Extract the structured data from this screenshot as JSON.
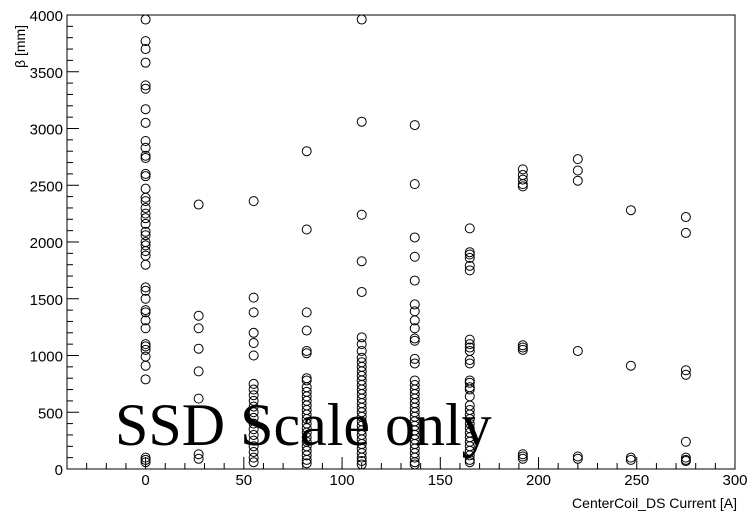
{
  "chart_data": {
    "type": "scatter",
    "title": "",
    "xlabel": "CenterCoil_DS Current [A]",
    "ylabel": "β [mm]",
    "xlim": [
      -40,
      300
    ],
    "ylim": [
      0,
      4000
    ],
    "x_ticks": [
      0,
      50,
      100,
      150,
      200,
      250,
      300
    ],
    "y_ticks": [
      0,
      500,
      1000,
      1500,
      2000,
      2500,
      3000,
      3500,
      4000
    ],
    "marker": "open-circle",
    "grid": false,
    "annotation": "SSD Scale only",
    "points": [
      [
        0,
        3960
      ],
      [
        0,
        3770
      ],
      [
        0,
        3700
      ],
      [
        0,
        3580
      ],
      [
        0,
        3380
      ],
      [
        0,
        3350
      ],
      [
        0,
        3170
      ],
      [
        0,
        3050
      ],
      [
        0,
        2890
      ],
      [
        0,
        2830
      ],
      [
        0,
        2760
      ],
      [
        0,
        2740
      ],
      [
        0,
        2600
      ],
      [
        0,
        2580
      ],
      [
        0,
        2470
      ],
      [
        0,
        2390
      ],
      [
        0,
        2360
      ],
      [
        0,
        2300
      ],
      [
        0,
        2250
      ],
      [
        0,
        2210
      ],
      [
        0,
        2160
      ],
      [
        0,
        2090
      ],
      [
        0,
        2060
      ],
      [
        0,
        2000
      ],
      [
        0,
        1970
      ],
      [
        0,
        1920
      ],
      [
        0,
        1880
      ],
      [
        0,
        1800
      ],
      [
        0,
        1600
      ],
      [
        0,
        1570
      ],
      [
        0,
        1500
      ],
      [
        0,
        1400
      ],
      [
        0,
        1380
      ],
      [
        0,
        1310
      ],
      [
        0,
        1240
      ],
      [
        0,
        1100
      ],
      [
        0,
        1080
      ],
      [
        0,
        1050
      ],
      [
        0,
        990
      ],
      [
        0,
        910
      ],
      [
        0,
        790
      ],
      [
        0,
        100
      ],
      [
        0,
        80
      ],
      [
        0,
        60
      ],
      [
        27,
        2330
      ],
      [
        27,
        1350
      ],
      [
        27,
        1240
      ],
      [
        27,
        1060
      ],
      [
        27,
        860
      ],
      [
        27,
        620
      ],
      [
        27,
        130
      ],
      [
        27,
        90
      ],
      [
        55,
        2360
      ],
      [
        55,
        1510
      ],
      [
        55,
        1380
      ],
      [
        55,
        1200
      ],
      [
        55,
        1110
      ],
      [
        55,
        1000
      ],
      [
        55,
        750
      ],
      [
        55,
        700
      ],
      [
        55,
        650
      ],
      [
        55,
        600
      ],
      [
        55,
        550
      ],
      [
        55,
        500
      ],
      [
        55,
        450
      ],
      [
        55,
        400
      ],
      [
        55,
        350
      ],
      [
        55,
        300
      ],
      [
        55,
        250
      ],
      [
        55,
        200
      ],
      [
        55,
        150
      ],
      [
        55,
        100
      ],
      [
        55,
        60
      ],
      [
        82,
        2800
      ],
      [
        82,
        2110
      ],
      [
        82,
        1380
      ],
      [
        82,
        1220
      ],
      [
        82,
        1040
      ],
      [
        82,
        1020
      ],
      [
        82,
        800
      ],
      [
        82,
        780
      ],
      [
        82,
        720
      ],
      [
        82,
        680
      ],
      [
        82,
        640
      ],
      [
        82,
        600
      ],
      [
        82,
        560
      ],
      [
        82,
        520
      ],
      [
        82,
        480
      ],
      [
        82,
        440
      ],
      [
        82,
        400
      ],
      [
        82,
        360
      ],
      [
        82,
        320
      ],
      [
        82,
        280
      ],
      [
        82,
        240
      ],
      [
        82,
        200
      ],
      [
        82,
        160
      ],
      [
        82,
        120
      ],
      [
        82,
        80
      ],
      [
        82,
        50
      ],
      [
        110,
        3960
      ],
      [
        110,
        3060
      ],
      [
        110,
        2240
      ],
      [
        110,
        1830
      ],
      [
        110,
        1560
      ],
      [
        110,
        1160
      ],
      [
        110,
        1100
      ],
      [
        110,
        1040
      ],
      [
        110,
        980
      ],
      [
        110,
        940
      ],
      [
        110,
        900
      ],
      [
        110,
        860
      ],
      [
        110,
        820
      ],
      [
        110,
        780
      ],
      [
        110,
        740
      ],
      [
        110,
        700
      ],
      [
        110,
        660
      ],
      [
        110,
        620
      ],
      [
        110,
        580
      ],
      [
        110,
        540
      ],
      [
        110,
        500
      ],
      [
        110,
        460
      ],
      [
        110,
        420
      ],
      [
        110,
        380
      ],
      [
        110,
        340
      ],
      [
        110,
        300
      ],
      [
        110,
        260
      ],
      [
        110,
        220
      ],
      [
        110,
        180
      ],
      [
        110,
        140
      ],
      [
        110,
        100
      ],
      [
        110,
        70
      ],
      [
        110,
        40
      ],
      [
        137,
        3030
      ],
      [
        137,
        2510
      ],
      [
        137,
        2040
      ],
      [
        137,
        1870
      ],
      [
        137,
        1660
      ],
      [
        137,
        1450
      ],
      [
        137,
        1390
      ],
      [
        137,
        1310
      ],
      [
        137,
        1240
      ],
      [
        137,
        1150
      ],
      [
        137,
        1130
      ],
      [
        137,
        970
      ],
      [
        137,
        930
      ],
      [
        137,
        780
      ],
      [
        137,
        740
      ],
      [
        137,
        700
      ],
      [
        137,
        660
      ],
      [
        137,
        620
      ],
      [
        137,
        580
      ],
      [
        137,
        540
      ],
      [
        137,
        500
      ],
      [
        137,
        460
      ],
      [
        137,
        420
      ],
      [
        137,
        380
      ],
      [
        137,
        340
      ],
      [
        137,
        300
      ],
      [
        137,
        260
      ],
      [
        137,
        220
      ],
      [
        137,
        180
      ],
      [
        137,
        140
      ],
      [
        137,
        100
      ],
      [
        137,
        60
      ],
      [
        137,
        40
      ],
      [
        165,
        2120
      ],
      [
        165,
        1910
      ],
      [
        165,
        1890
      ],
      [
        165,
        1860
      ],
      [
        165,
        1790
      ],
      [
        165,
        1750
      ],
      [
        165,
        1140
      ],
      [
        165,
        1100
      ],
      [
        165,
        1070
      ],
      [
        165,
        1040
      ],
      [
        165,
        960
      ],
      [
        165,
        930
      ],
      [
        165,
        780
      ],
      [
        165,
        760
      ],
      [
        165,
        720
      ],
      [
        165,
        700
      ],
      [
        165,
        640
      ],
      [
        165,
        560
      ],
      [
        165,
        520
      ],
      [
        165,
        480
      ],
      [
        165,
        440
      ],
      [
        165,
        400
      ],
      [
        165,
        360
      ],
      [
        165,
        320
      ],
      [
        165,
        280
      ],
      [
        165,
        240
      ],
      [
        165,
        200
      ],
      [
        165,
        160
      ],
      [
        165,
        120
      ],
      [
        165,
        80
      ],
      [
        165,
        60
      ],
      [
        192,
        2640
      ],
      [
        192,
        2590
      ],
      [
        192,
        2550
      ],
      [
        192,
        2510
      ],
      [
        192,
        2490
      ],
      [
        192,
        1090
      ],
      [
        192,
        1070
      ],
      [
        192,
        1050
      ],
      [
        192,
        130
      ],
      [
        192,
        110
      ],
      [
        192,
        90
      ],
      [
        220,
        2730
      ],
      [
        220,
        2630
      ],
      [
        220,
        2540
      ],
      [
        220,
        1040
      ],
      [
        220,
        110
      ],
      [
        220,
        90
      ],
      [
        247,
        2280
      ],
      [
        247,
        910
      ],
      [
        247,
        100
      ],
      [
        247,
        80
      ],
      [
        275,
        2220
      ],
      [
        275,
        2080
      ],
      [
        275,
        870
      ],
      [
        275,
        830
      ],
      [
        275,
        240
      ],
      [
        275,
        100
      ],
      [
        275,
        80
      ],
      [
        275,
        70
      ]
    ]
  }
}
